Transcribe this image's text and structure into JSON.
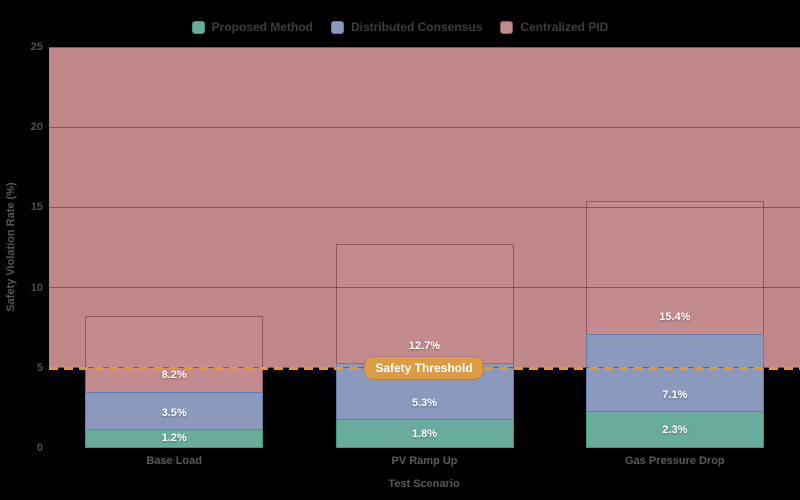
{
  "figure": {
    "background": "#000000"
  },
  "chart_data": {
    "type": "bar",
    "bar_mode": "overlay",
    "title": "",
    "categories": [
      "Base Load",
      "PV Ramp Up",
      "Gas Pressure Drop"
    ],
    "series": [
      {
        "name": "Proposed Method",
        "values": [
          1.2,
          1.8,
          2.3
        ],
        "color": "#68ad9c",
        "edge_color": "#41957f"
      },
      {
        "name": "Distributed Consensus",
        "values": [
          3.5,
          5.3,
          7.1
        ],
        "color": "#8b9abc",
        "edge_color": "#5d7db3"
      },
      {
        "name": "Centralized PID",
        "values": [
          8.2,
          12.7,
          15.4
        ],
        "color": "#c48b8e",
        "edge_color": "#91595f"
      }
    ],
    "value_label_format": "{v}%",
    "xlabel": "Test Scenario",
    "ylabel": "Safety Violation Rate (%)",
    "ylim": [
      0,
      25
    ],
    "yticks": [
      0,
      5,
      10,
      15,
      20,
      25
    ],
    "grid": true,
    "legend_position": "top center",
    "threshold": {
      "value": 5,
      "label": "Safety Threshold",
      "line_color": "#e09a3c",
      "box_color": "#dd9b42"
    },
    "violation_band": {
      "from": 5,
      "to": 25,
      "color": "#c1888b"
    }
  },
  "style": {
    "grid_color": "rgba(0,0,0,0.35)",
    "tick_color": "#4f4f4f",
    "axis_label_color": "#575757",
    "legend_text_color": "#3d3d3d",
    "value_label_color": "#ffffff"
  }
}
